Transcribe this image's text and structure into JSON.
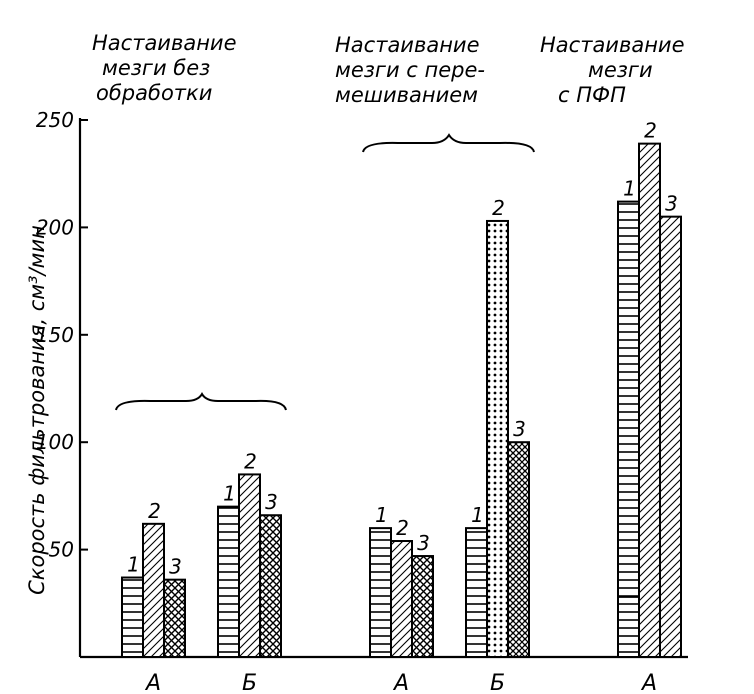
{
  "chart_data": {
    "type": "bar",
    "ylabel": "Скорость фильтрования, см³/мин",
    "ylim": [
      0,
      250
    ],
    "yticks": [
      50,
      100,
      150,
      200,
      250
    ],
    "grid": false,
    "series_labels": [
      "1",
      "2",
      "3"
    ],
    "groups": [
      {
        "title_lines": [
          "Настаивание",
          "мезги без",
          "обработки"
        ],
        "subgroups": [
          {
            "label": "А",
            "values": [
              37,
              62,
              36
            ]
          },
          {
            "label": "Б",
            "values": [
              70,
              85,
              66
            ]
          }
        ]
      },
      {
        "title_lines": [
          "Настаивание",
          "мезги с пере-",
          "мешиванием"
        ],
        "subgroups": [
          {
            "label": "А",
            "values": [
              60,
              54,
              47
            ]
          },
          {
            "label": "Б",
            "values": [
              60,
              203,
              100
            ]
          }
        ]
      },
      {
        "title_lines": [
          "Настаивание",
          "мезги",
          "с ПФП"
        ],
        "subgroups": [
          {
            "label": "А",
            "values": [
              212,
              239,
              205
            ]
          }
        ]
      }
    ]
  }
}
